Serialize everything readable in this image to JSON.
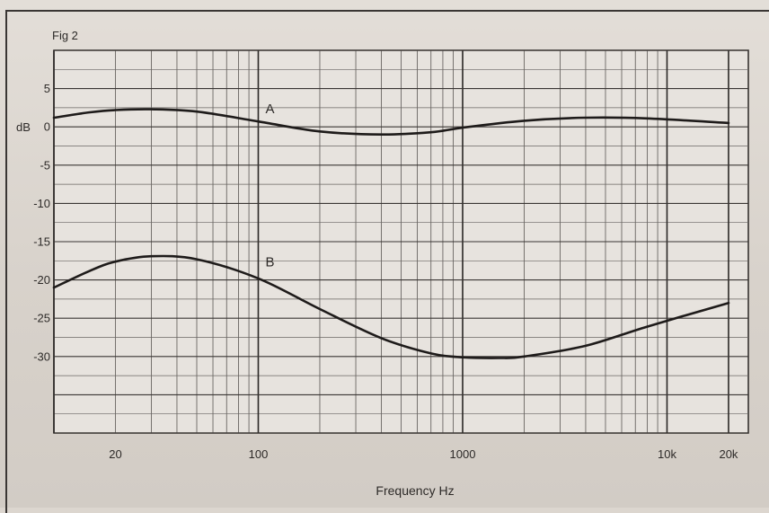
{
  "figure_label": "Fig 2",
  "chart_data": {
    "type": "line",
    "title": "",
    "xlabel": "Frequency Hz",
    "ylabel": "dB",
    "x_scale": "log",
    "xlim": [
      10,
      25000
    ],
    "ylim": [
      -40,
      10
    ],
    "grid": true,
    "x_ticks": [
      {
        "value": 20,
        "label": "20"
      },
      {
        "value": 100,
        "label": "100"
      },
      {
        "value": 1000,
        "label": "1000"
      },
      {
        "value": 10000,
        "label": "10k"
      },
      {
        "value": 20000,
        "label": "20k"
      }
    ],
    "y_ticks": [
      {
        "value": 5,
        "label": "5"
      },
      {
        "value": 0,
        "label": "0"
      },
      {
        "value": -5,
        "label": "-5"
      },
      {
        "value": -10,
        "label": "-10"
      },
      {
        "value": -15,
        "label": "-15"
      },
      {
        "value": -20,
        "label": "-20"
      },
      {
        "value": -25,
        "label": "-25"
      },
      {
        "value": -30,
        "label": "-30"
      }
    ],
    "series": [
      {
        "name": "A",
        "label_at": [
          100,
          1.8
        ],
        "x": [
          10,
          15,
          20,
          30,
          50,
          100,
          200,
          400,
          700,
          1000,
          2000,
          4000,
          8000,
          20000
        ],
        "y": [
          1.2,
          1.9,
          2.2,
          2.3,
          2.0,
          0.7,
          -0.6,
          -1.0,
          -0.7,
          -0.1,
          0.8,
          1.2,
          1.1,
          0.5
        ]
      },
      {
        "name": "B",
        "label_at": [
          100,
          -18.2
        ],
        "x": [
          10,
          15,
          20,
          30,
          50,
          100,
          200,
          400,
          700,
          1000,
          1500,
          2000,
          4000,
          8000,
          20000
        ],
        "y": [
          -21.0,
          -18.8,
          -17.6,
          -16.9,
          -17.3,
          -19.8,
          -23.8,
          -27.6,
          -29.6,
          -30.1,
          -30.2,
          -30.0,
          -28.6,
          -26.1,
          -23.0
        ]
      }
    ]
  }
}
